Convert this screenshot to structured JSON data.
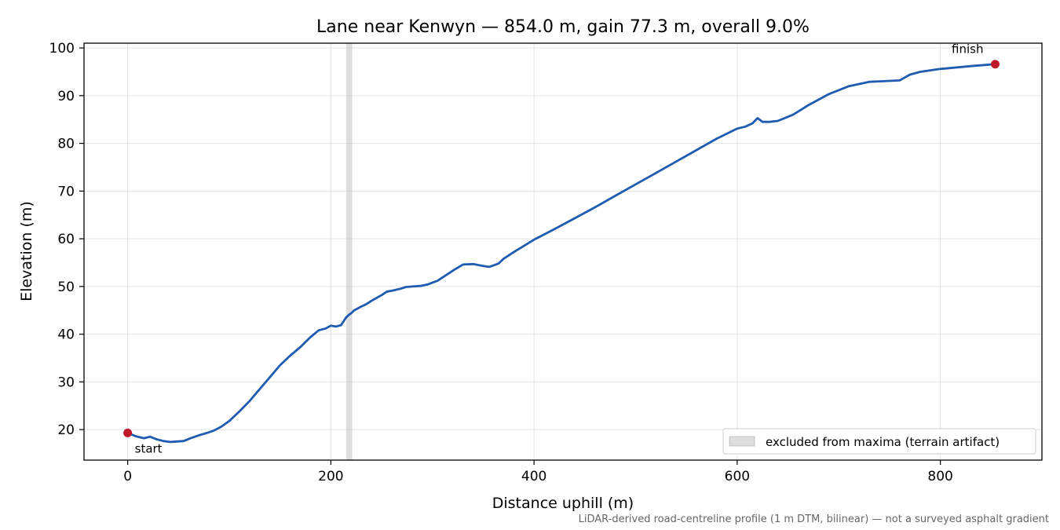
{
  "chart_data": {
    "type": "line",
    "title": "Lane near Kenwyn — 854.0 m, gain 77.3 m, overall 9.0%",
    "xlabel": "Distance uphill (m)",
    "ylabel": "Elevation (m)",
    "xlim": [
      -43,
      900
    ],
    "ylim": [
      13.6,
      101
    ],
    "xticks": [
      0,
      200,
      400,
      600,
      800
    ],
    "yticks": [
      20,
      30,
      40,
      50,
      60,
      70,
      80,
      90,
      100
    ],
    "grid": true,
    "legend_position": "lower-right",
    "series": [
      {
        "color": "#1f5bb0",
        "x": [
          0,
          8,
          16,
          22,
          28,
          35,
          42,
          48,
          55,
          62,
          70,
          78,
          85,
          92,
          100,
          110,
          120,
          130,
          140,
          150,
          160,
          170,
          180,
          188,
          195,
          200,
          205,
          210,
          215,
          218,
          220,
          223,
          230,
          235,
          240,
          250,
          255,
          262,
          268,
          274,
          280,
          288,
          295,
          305,
          320,
          330,
          340,
          350,
          356,
          365,
          370,
          380,
          390,
          400,
          420,
          440,
          460,
          480,
          500,
          520,
          540,
          560,
          580,
          600,
          608,
          615,
          620,
          625,
          632,
          640,
          655,
          670,
          690,
          710,
          730,
          740,
          760,
          765,
          770,
          780,
          800,
          830,
          854
        ],
        "y": [
          19.3,
          18.6,
          18.2,
          18.5,
          18.0,
          17.6,
          17.4,
          17.5,
          17.6,
          18.2,
          18.8,
          19.3,
          19.8,
          20.6,
          21.8,
          23.8,
          26.0,
          28.5,
          31.0,
          33.5,
          35.5,
          37.3,
          39.4,
          40.8,
          41.2,
          41.8,
          41.6,
          41.9,
          43.5,
          44.1,
          44.4,
          45.0,
          45.8,
          46.3,
          47.0,
          48.2,
          48.9,
          49.2,
          49.5,
          49.9,
          50.0,
          50.1,
          50.4,
          51.2,
          53.3,
          54.6,
          54.7,
          54.3,
          54.1,
          54.8,
          55.8,
          57.2,
          58.5,
          59.8,
          62.0,
          64.3,
          66.6,
          69.0,
          71.4,
          73.8,
          76.2,
          78.6,
          81.0,
          83.1,
          83.5,
          84.2,
          85.3,
          84.5,
          84.5,
          84.7,
          86.0,
          88.0,
          90.3,
          92.0,
          92.9,
          93.0,
          93.2,
          93.8,
          94.4,
          95.0,
          95.6,
          96.2,
          96.6
        ]
      }
    ],
    "markers": [
      {
        "x": 0,
        "y": 19.3,
        "label": "start",
        "color": "#c0172b"
      },
      {
        "x": 854,
        "y": 96.6,
        "label": "finish",
        "color": "#c0172b"
      }
    ],
    "excluded_region": {
      "x": [
        215,
        221
      ],
      "label": "excluded from maxima (terrain artifact)",
      "color": "#bdbdbd"
    },
    "footnote": "LiDAR-derived road-centreline profile (1 m DTM, bilinear) — not a surveyed asphalt gradient"
  }
}
